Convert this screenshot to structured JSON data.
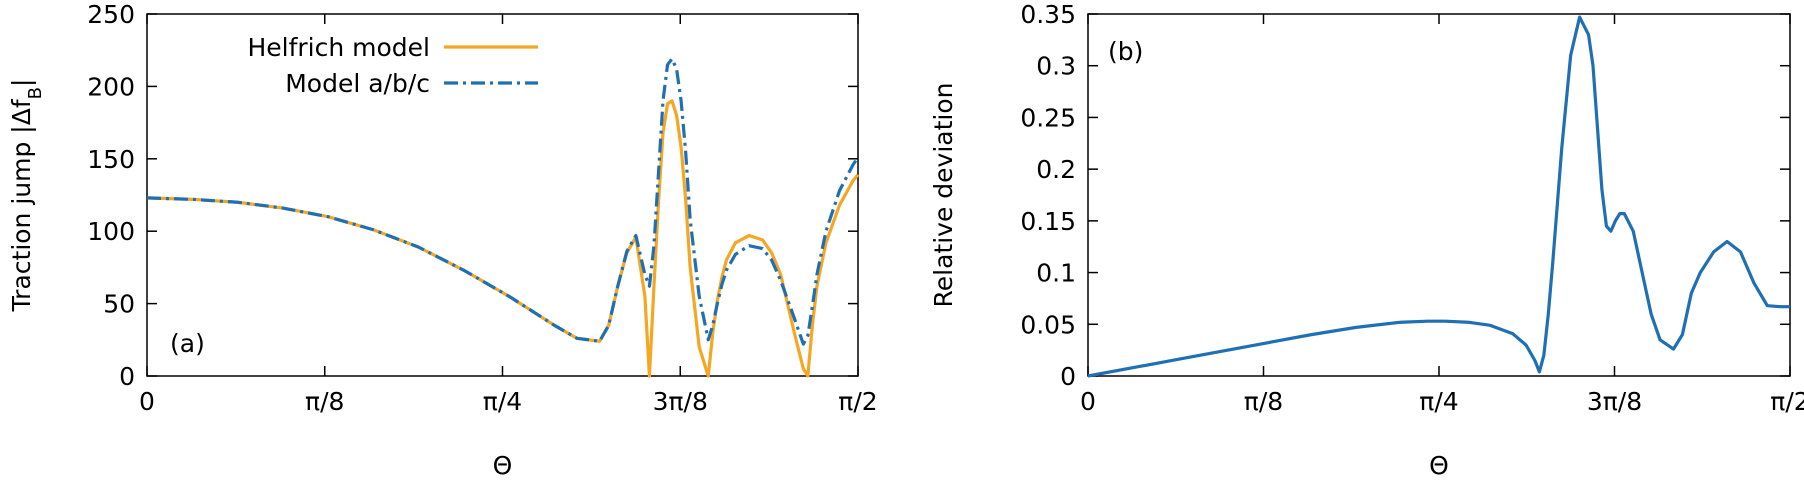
{
  "chart_data": [
    {
      "type": "line",
      "panel_label": "(a)",
      "xlabel": "Θ",
      "ylabel_main": "Traction jump |Δf",
      "ylabel_sub": "B",
      "ylabel_end": "|",
      "xlim": [
        0,
        1.5708
      ],
      "ylim": [
        0,
        250
      ],
      "xticks": [
        {
          "value": 0,
          "label": "0"
        },
        {
          "value": 0.3927,
          "label": "π/8"
        },
        {
          "value": 0.7854,
          "label": "π/4"
        },
        {
          "value": 1.1781,
          "label": "3π/8"
        },
        {
          "value": 1.5708,
          "label": "π/2"
        }
      ],
      "yticks": [
        {
          "value": 0,
          "label": "0"
        },
        {
          "value": 50,
          "label": "50"
        },
        {
          "value": 100,
          "label": "100"
        },
        {
          "value": 150,
          "label": "150"
        },
        {
          "value": 200,
          "label": "200"
        },
        {
          "value": 250,
          "label": "250"
        }
      ],
      "grid": false,
      "legend_position": "top-left",
      "series": [
        {
          "name": "Helfrich model",
          "color": "#f5a623",
          "dash": "solid",
          "x": [
            0,
            0.1,
            0.2,
            0.3,
            0.4,
            0.5,
            0.6,
            0.7,
            0.8,
            0.9,
            0.95,
            1.0,
            1.02,
            1.04,
            1.06,
            1.08,
            1.1,
            1.11,
            1.12,
            1.13,
            1.14,
            1.15,
            1.16,
            1.17,
            1.18,
            1.19,
            1.2,
            1.22,
            1.24,
            1.25,
            1.26,
            1.27,
            1.28,
            1.3,
            1.33,
            1.36,
            1.38,
            1.4,
            1.43,
            1.45,
            1.46,
            1.47,
            1.48,
            1.5,
            1.53,
            1.56,
            1.5708
          ],
          "y": [
            123,
            122,
            120,
            116,
            110,
            101,
            89,
            73,
            55,
            35,
            26,
            24,
            35,
            62,
            85,
            96,
            55,
            0,
            62,
            120,
            168,
            188,
            190,
            180,
            158,
            122,
            75,
            20,
            0,
            30,
            52,
            68,
            80,
            92,
            97,
            94,
            85,
            70,
            30,
            5,
            0,
            35,
            62,
            92,
            118,
            135,
            139
          ]
        },
        {
          "name": "Model a/b/c",
          "color": "#1f6fb5",
          "dash": "dashdot",
          "x": [
            0,
            0.1,
            0.2,
            0.3,
            0.4,
            0.5,
            0.6,
            0.7,
            0.8,
            0.9,
            0.95,
            1.0,
            1.02,
            1.04,
            1.06,
            1.08,
            1.1,
            1.11,
            1.12,
            1.13,
            1.14,
            1.15,
            1.16,
            1.17,
            1.18,
            1.19,
            1.2,
            1.22,
            1.24,
            1.25,
            1.26,
            1.27,
            1.28,
            1.3,
            1.33,
            1.36,
            1.38,
            1.4,
            1.43,
            1.45,
            1.46,
            1.47,
            1.48,
            1.5,
            1.53,
            1.56,
            1.5708
          ],
          "y": [
            123,
            122,
            120,
            116,
            110,
            101,
            89,
            73,
            55,
            35,
            26,
            24,
            35,
            62,
            86,
            97,
            70,
            62,
            90,
            140,
            190,
            215,
            219,
            212,
            190,
            155,
            108,
            55,
            25,
            35,
            50,
            63,
            73,
            84,
            90,
            88,
            80,
            66,
            40,
            22,
            28,
            48,
            70,
            100,
            128,
            146,
            151
          ]
        }
      ]
    },
    {
      "type": "line",
      "panel_label": "(b)",
      "xlabel": "Θ",
      "ylabel": "Relative deviation",
      "xlim": [
        0,
        1.5708
      ],
      "ylim": [
        0,
        0.35
      ],
      "xticks": [
        {
          "value": 0,
          "label": "0"
        },
        {
          "value": 0.3927,
          "label": "π/8"
        },
        {
          "value": 0.7854,
          "label": "π/4"
        },
        {
          "value": 1.1781,
          "label": "3π/8"
        },
        {
          "value": 1.5708,
          "label": "π/2"
        }
      ],
      "yticks": [
        {
          "value": 0,
          "label": "0"
        },
        {
          "value": 0.05,
          "label": "0.05"
        },
        {
          "value": 0.1,
          "label": "0.1"
        },
        {
          "value": 0.15,
          "label": "0.15"
        },
        {
          "value": 0.2,
          "label": "0.2"
        },
        {
          "value": 0.25,
          "label": "0.25"
        },
        {
          "value": 0.3,
          "label": "0.3"
        },
        {
          "value": 0.35,
          "label": "0.35"
        }
      ],
      "grid": false,
      "series": [
        {
          "color": "#1f6fb5",
          "dash": "solid",
          "x": [
            0,
            0.1,
            0.2,
            0.3,
            0.4,
            0.5,
            0.6,
            0.7,
            0.76,
            0.8,
            0.85,
            0.9,
            0.95,
            0.98,
            1.0,
            1.01,
            1.02,
            1.03,
            1.04,
            1.06,
            1.08,
            1.1,
            1.12,
            1.13,
            1.14,
            1.15,
            1.16,
            1.17,
            1.18,
            1.19,
            1.2,
            1.22,
            1.24,
            1.26,
            1.28,
            1.31,
            1.33,
            1.35,
            1.37,
            1.4,
            1.43,
            1.46,
            1.49,
            1.52,
            1.55,
            1.5708
          ],
          "y": [
            0,
            0.008,
            0.016,
            0.024,
            0.032,
            0.04,
            0.047,
            0.052,
            0.053,
            0.053,
            0.052,
            0.049,
            0.041,
            0.03,
            0.015,
            0.004,
            0.02,
            0.06,
            0.11,
            0.22,
            0.31,
            0.347,
            0.33,
            0.3,
            0.24,
            0.18,
            0.145,
            0.14,
            0.15,
            0.157,
            0.157,
            0.14,
            0.1,
            0.06,
            0.035,
            0.026,
            0.04,
            0.08,
            0.1,
            0.12,
            0.13,
            0.12,
            0.09,
            0.068,
            0.067,
            0.067
          ]
        }
      ]
    }
  ]
}
